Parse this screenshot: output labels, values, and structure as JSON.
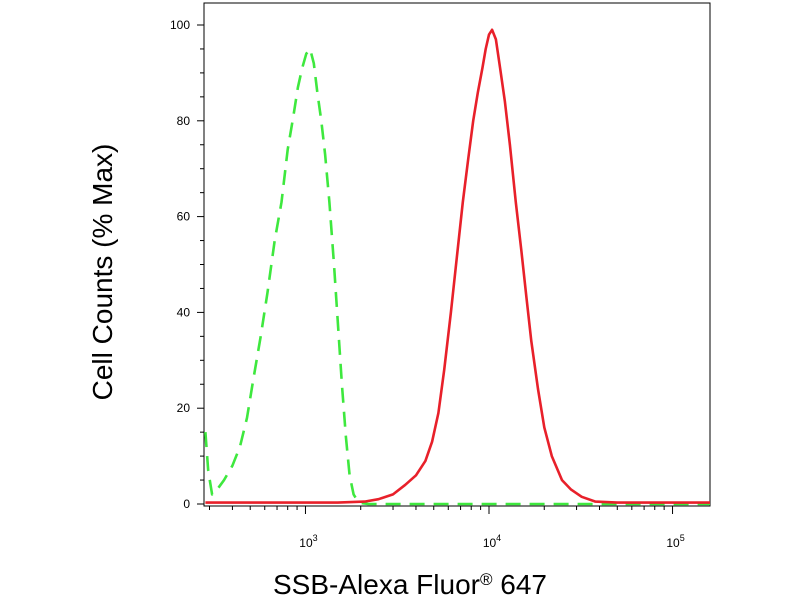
{
  "chart_data": {
    "type": "line",
    "xlabel": "SSB-Alexa Fluor",
    "xlabel_mark": "®",
    "xlabel_suffix": " 647",
    "ylabel": "Cell Counts (% Max)",
    "x_scale": "log",
    "xlim": [
      280,
      160000
    ],
    "ylim": [
      0,
      102
    ],
    "x_ticks": [
      {
        "value": 1000,
        "base": "10",
        "exp": "3"
      },
      {
        "value": 10000,
        "base": "10",
        "exp": "4"
      },
      {
        "value": 100000,
        "base": "10",
        "exp": "5"
      }
    ],
    "y_ticks": [
      0,
      20,
      40,
      60,
      80,
      100
    ],
    "grid": false,
    "series": [
      {
        "color": "#3ee83e",
        "dash": true,
        "points": [
          [
            285,
            15
          ],
          [
            295,
            7
          ],
          [
            310,
            2
          ],
          [
            330,
            3
          ],
          [
            360,
            5
          ],
          [
            400,
            8
          ],
          [
            440,
            12
          ],
          [
            480,
            18
          ],
          [
            520,
            26
          ],
          [
            570,
            35
          ],
          [
            620,
            44
          ],
          [
            680,
            55
          ],
          [
            740,
            63
          ],
          [
            800,
            74
          ],
          [
            860,
            81
          ],
          [
            910,
            87
          ],
          [
            960,
            91
          ],
          [
            1010,
            94
          ],
          [
            1060,
            95
          ],
          [
            1110,
            92
          ],
          [
            1160,
            86
          ],
          [
            1220,
            80
          ],
          [
            1280,
            73
          ],
          [
            1350,
            63
          ],
          [
            1430,
            50
          ],
          [
            1500,
            38
          ],
          [
            1580,
            25
          ],
          [
            1660,
            14
          ],
          [
            1740,
            6
          ],
          [
            1830,
            2
          ],
          [
            1950,
            0.3
          ],
          [
            2200,
            0
          ],
          [
            5000,
            0
          ],
          [
            160000,
            0
          ]
        ]
      },
      {
        "color": "#e8202a",
        "dash": false,
        "points": [
          [
            285,
            0.3
          ],
          [
            600,
            0.3
          ],
          [
            1500,
            0.3
          ],
          [
            2100,
            0.5
          ],
          [
            2500,
            1
          ],
          [
            3000,
            2
          ],
          [
            3500,
            4
          ],
          [
            4000,
            6
          ],
          [
            4500,
            9
          ],
          [
            4900,
            13
          ],
          [
            5300,
            19
          ],
          [
            5700,
            28
          ],
          [
            6200,
            40
          ],
          [
            6700,
            52
          ],
          [
            7200,
            63
          ],
          [
            7700,
            72
          ],
          [
            8200,
            80
          ],
          [
            8700,
            86
          ],
          [
            9200,
            91
          ],
          [
            9600,
            95
          ],
          [
            10000,
            98
          ],
          [
            10400,
            99
          ],
          [
            10900,
            97
          ],
          [
            11500,
            91
          ],
          [
            12200,
            84
          ],
          [
            13000,
            75
          ],
          [
            14000,
            63
          ],
          [
            15000,
            53
          ],
          [
            16000,
            43
          ],
          [
            17000,
            34
          ],
          [
            18500,
            24
          ],
          [
            20000,
            16
          ],
          [
            22000,
            10
          ],
          [
            25000,
            5
          ],
          [
            28000,
            3
          ],
          [
            32000,
            1.5
          ],
          [
            38000,
            0.5
          ],
          [
            50000,
            0.3
          ],
          [
            160000,
            0.3
          ]
        ]
      }
    ]
  }
}
